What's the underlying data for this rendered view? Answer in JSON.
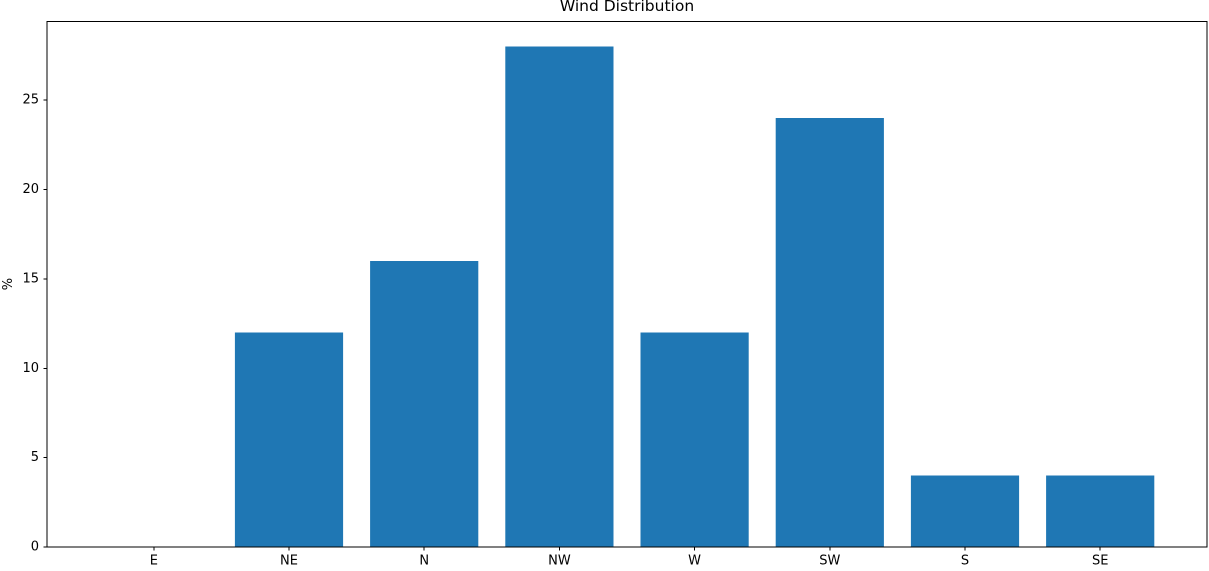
{
  "chart_data": {
    "type": "bar",
    "title": "Wind Distribution",
    "xlabel": "",
    "ylabel": "%",
    "categories": [
      "E",
      "NE",
      "N",
      "NW",
      "W",
      "SW",
      "S",
      "SE"
    ],
    "values": [
      0,
      12,
      16,
      28,
      12,
      24,
      4,
      4
    ],
    "yticks": [
      0,
      5,
      10,
      15,
      20,
      25
    ],
    "ylim": [
      0,
      29.4
    ],
    "xlim": [
      -0.79,
      7.79
    ],
    "bar_width": 0.8,
    "bar_color": "#1f77b4",
    "axis_color": "#000000",
    "background_color": "#ffffff",
    "grid": false,
    "legend": "none"
  }
}
